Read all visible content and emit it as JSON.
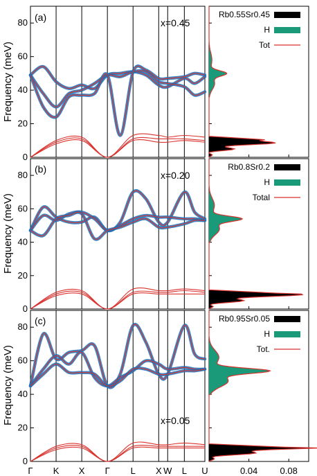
{
  "figure": {
    "ylabel": "Frequency (meV)",
    "path_labels": [
      "Γ",
      "K",
      "X",
      "Γ",
      "L",
      "X",
      "W",
      "L",
      "U"
    ],
    "dos_ticks": [
      "0.04",
      "0.08"
    ]
  },
  "colors": {
    "phonon_line": "#d9322e",
    "h_weight": "#1f6fb5",
    "dos_total": "#d9322e",
    "dos_h": "#1a9a78",
    "dos_rbsr": "#000000"
  },
  "chart_data": [
    {
      "type": "line",
      "panel": "(a)",
      "annotation": "x=0.45",
      "ylabel": "Frequency (meV)",
      "ylim": [
        0,
        90
      ],
      "yticks": [
        0,
        20,
        40,
        60,
        80
      ],
      "path_positions": [
        0,
        1,
        2,
        3,
        4,
        5,
        5.35,
        6,
        6.8
      ],
      "series": [
        {
          "kind": "acoustic",
          "x": [
            0,
            1,
            2,
            3,
            4,
            5,
            5.35,
            6,
            6.8
          ],
          "y": [
            0,
            8,
            10,
            0,
            10,
            9,
            9,
            10,
            9
          ]
        },
        {
          "kind": "acoustic",
          "x": [
            0,
            1,
            2,
            3,
            4,
            5,
            5.35,
            6,
            6.8
          ],
          "y": [
            0,
            9,
            11,
            0,
            11,
            11,
            11,
            11,
            10
          ]
        },
        {
          "kind": "acoustic",
          "x": [
            0,
            1,
            2,
            3,
            4,
            5,
            5.35,
            6,
            6.8
          ],
          "y": [
            0,
            10,
            12,
            0,
            13,
            13,
            12,
            13,
            12
          ]
        },
        {
          "kind": "optical",
          "x": [
            0,
            0.5,
            1,
            1.5,
            2,
            2.5,
            3,
            3.5,
            4,
            4.5,
            5,
            5.35,
            6,
            6.4,
            6.8
          ],
          "y": [
            49,
            54,
            45,
            41,
            43,
            41,
            49,
            50,
            51,
            49,
            43,
            42,
            47,
            44,
            48
          ]
        },
        {
          "kind": "optical",
          "x": [
            0,
            0.5,
            1,
            1.5,
            2,
            2.5,
            3,
            3.5,
            4,
            4.5,
            5,
            5.35,
            6,
            6.4,
            6.8
          ],
          "y": [
            49,
            38,
            30,
            38,
            40,
            44,
            49,
            48,
            51,
            51,
            45,
            44,
            42,
            37,
            39
          ]
        },
        {
          "kind": "optical",
          "x": [
            0,
            0.5,
            1,
            1.5,
            2,
            2.5,
            3,
            3.5,
            4,
            4.5,
            5,
            5.35,
            6,
            6.4,
            6.8
          ],
          "y": [
            49,
            30,
            24,
            36,
            37,
            38,
            49,
            13,
            51,
            52,
            47,
            47,
            48,
            50,
            49
          ]
        }
      ],
      "dos": {
        "legend": [
          "Rb0.55Sr0.45",
          "H",
          "Tot"
        ],
        "acoustic_peak_freq": 10,
        "acoustic_peak_value": 0.07,
        "optical_peak_freq": 50,
        "optical_peak_value": 0.016
      }
    },
    {
      "type": "line",
      "panel": "(b)",
      "annotation": "x=0.20",
      "ylabel": "Frequency (meV)",
      "ylim": [
        0,
        90
      ],
      "yticks": [
        0,
        20,
        40,
        60,
        80
      ],
      "path_positions": [
        0,
        1,
        2,
        3,
        4,
        5,
        5.35,
        6,
        6.8
      ],
      "series": [
        {
          "kind": "acoustic",
          "x": [
            0,
            1,
            2,
            3,
            4,
            5,
            5.35,
            6,
            6.8
          ],
          "y": [
            0,
            8,
            9,
            0,
            9,
            9,
            9,
            9,
            9
          ]
        },
        {
          "kind": "acoustic",
          "x": [
            0,
            1,
            2,
            3,
            4,
            5,
            5.35,
            6,
            6.8
          ],
          "y": [
            0,
            9,
            10,
            0,
            10,
            10,
            10,
            11,
            10
          ]
        },
        {
          "kind": "acoustic",
          "x": [
            0,
            1,
            2,
            3,
            4,
            5,
            5.35,
            6,
            6.8
          ],
          "y": [
            0,
            10,
            11,
            0,
            12,
            11,
            11,
            12,
            11
          ]
        },
        {
          "kind": "optical",
          "x": [
            0,
            0.5,
            1,
            1.5,
            2,
            2.5,
            3,
            3.5,
            4,
            4.5,
            5,
            5.35,
            6,
            6.4,
            6.8
          ],
          "y": [
            47,
            61,
            55,
            52,
            52,
            55,
            47,
            52,
            70,
            66,
            52,
            52,
            70,
            58,
            54
          ]
        },
        {
          "kind": "optical",
          "x": [
            0,
            0.5,
            1,
            1.5,
            2,
            2.5,
            3,
            3.5,
            4,
            4.5,
            5,
            5.35,
            6,
            6.4,
            6.8
          ],
          "y": [
            47,
            56,
            53,
            57,
            58,
            54,
            47,
            50,
            54,
            56,
            55,
            55,
            54,
            54,
            53
          ]
        },
        {
          "kind": "optical",
          "x": [
            0,
            0.5,
            1,
            1.5,
            2,
            2.5,
            3,
            3.5,
            4,
            4.5,
            5,
            5.35,
            6,
            6.4,
            6.8
          ],
          "y": [
            47,
            44,
            54,
            56,
            57,
            42,
            47,
            49,
            52,
            54,
            49,
            49,
            51,
            53,
            53
          ]
        }
      ],
      "dos": {
        "legend": [
          "Rb0.8Sr0.2",
          "H",
          "Total"
        ],
        "acoustic_peak_freq": 9,
        "acoustic_peak_value": 0.085,
        "optical_peak_freq": 54,
        "optical_peak_value": 0.03
      }
    },
    {
      "type": "line",
      "panel": "(c)",
      "annotation": "x=0.05",
      "ylabel": "Frequency (meV)",
      "ylim": [
        0,
        90
      ],
      "yticks": [
        0,
        20,
        40,
        60,
        80
      ],
      "path_positions": [
        0,
        1,
        2,
        3,
        4,
        5,
        5.35,
        6,
        6.8
      ],
      "series": [
        {
          "kind": "acoustic",
          "x": [
            0,
            1,
            2,
            3,
            4,
            5,
            5.35,
            6,
            6.8
          ],
          "y": [
            0,
            7,
            8,
            0,
            8,
            8,
            8,
            8,
            8
          ]
        },
        {
          "kind": "acoustic",
          "x": [
            0,
            1,
            2,
            3,
            4,
            5,
            5.35,
            6,
            6.8
          ],
          "y": [
            0,
            8,
            9,
            0,
            9,
            9,
            9,
            9,
            9
          ]
        },
        {
          "kind": "acoustic",
          "x": [
            0,
            1,
            2,
            3,
            4,
            5,
            5.35,
            6,
            6.8
          ],
          "y": [
            0,
            9,
            10,
            0,
            11,
            10,
            10,
            11,
            10
          ]
        },
        {
          "kind": "optical",
          "x": [
            0,
            0.5,
            1,
            1.5,
            2,
            2.5,
            3,
            3.5,
            4,
            4.5,
            5,
            5.35,
            6,
            6.4,
            6.8
          ],
          "y": [
            45,
            76,
            61,
            65,
            66,
            69,
            45,
            52,
            81,
            71,
            52,
            52,
            81,
            64,
            61
          ]
        },
        {
          "kind": "optical",
          "x": [
            0,
            0.5,
            1,
            1.5,
            2,
            2.5,
            3,
            3.5,
            4,
            4.5,
            5,
            5.35,
            6,
            6.4,
            6.8
          ],
          "y": [
            45,
            55,
            63,
            58,
            65,
            50,
            45,
            50,
            54,
            60,
            58,
            55,
            56,
            55,
            55
          ]
        },
        {
          "kind": "optical",
          "x": [
            0,
            0.5,
            1,
            1.5,
            2,
            2.5,
            3,
            3.5,
            4,
            4.5,
            5,
            5.35,
            6,
            6.4,
            6.8
          ],
          "y": [
            45,
            52,
            58,
            53,
            53,
            52,
            45,
            48,
            55,
            55,
            52,
            52,
            54,
            54,
            55
          ]
        }
      ],
      "dos": {
        "legend": [
          "Rb0.95Sr0.05",
          "H",
          "Tot."
        ],
        "acoustic_peak_freq": 8,
        "acoustic_peak_value": 0.095,
        "optical_peak_freq": 54,
        "optical_peak_value": 0.055
      }
    }
  ]
}
